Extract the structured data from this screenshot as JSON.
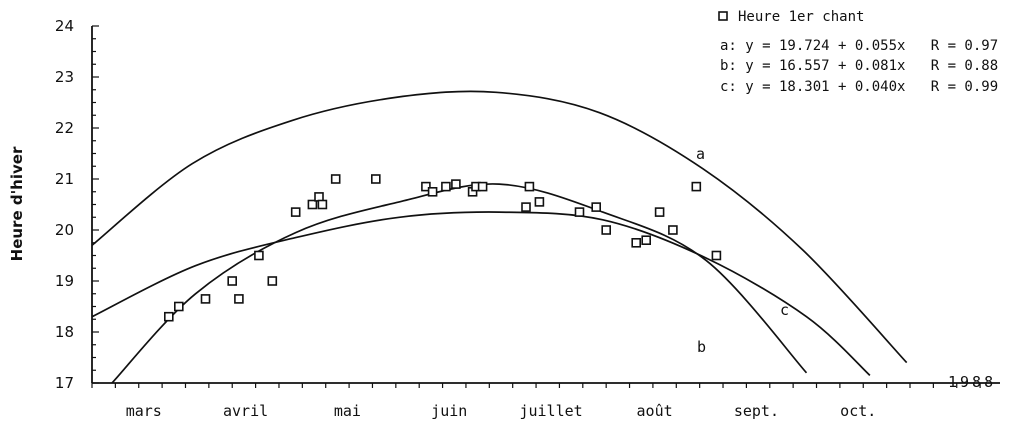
{
  "chart_data": {
    "type": "scatter",
    "title": "",
    "xlabel": "",
    "ylabel": "Heure d'hiver",
    "year": "1988",
    "months": [
      "mars",
      "avril",
      "mai",
      "juin",
      "juillet",
      "août",
      "sept.",
      "oct."
    ],
    "ylim": [
      17,
      24
    ],
    "yticks": [
      "17",
      "18",
      "19",
      "20",
      "21",
      "22",
      "23",
      "24"
    ],
    "grid": false,
    "legend_position": "top-right",
    "series": [
      {
        "name": "Heure 1er chant",
        "marker": "open-square",
        "points": [
          {
            "x": "24 mars",
            "y": 18.3
          },
          {
            "x": "27 mars",
            "y": 18.5
          },
          {
            "x": "4 avr.",
            "y": 18.65
          },
          {
            "x": "12 avr.",
            "y": 19.0
          },
          {
            "x": "14 avr.",
            "y": 18.65
          },
          {
            "x": "20 avr.",
            "y": 19.5
          },
          {
            "x": "24 avr.",
            "y": 19.0
          },
          {
            "x": "1 mai",
            "y": 20.35
          },
          {
            "x": "6 mai",
            "y": 20.5
          },
          {
            "x": "8 mai",
            "y": 20.65
          },
          {
            "x": "9 mai",
            "y": 20.5
          },
          {
            "x": "13 mai",
            "y": 21.0
          },
          {
            "x": "25 mai",
            "y": 21.0
          },
          {
            "x": "9 juin",
            "y": 20.85
          },
          {
            "x": "11 juin",
            "y": 20.75
          },
          {
            "x": "15 juin",
            "y": 20.85
          },
          {
            "x": "18 juin",
            "y": 20.9
          },
          {
            "x": "23 juin",
            "y": 20.75
          },
          {
            "x": "24 juin",
            "y": 20.85
          },
          {
            "x": "26 juin",
            "y": 20.85
          },
          {
            "x": "9 juil.",
            "y": 20.45
          },
          {
            "x": "10 juil.",
            "y": 20.85
          },
          {
            "x": "13 juil.",
            "y": 20.55
          },
          {
            "x": "25 juil.",
            "y": 20.35
          },
          {
            "x": "30 juil.",
            "y": 20.45
          },
          {
            "x": "2 août",
            "y": 20.0
          },
          {
            "x": "11 août",
            "y": 19.75
          },
          {
            "x": "14 août",
            "y": 19.8
          },
          {
            "x": "18 août",
            "y": 20.35
          },
          {
            "x": "22 août",
            "y": 20.0
          },
          {
            "x": "29 août",
            "y": 20.85
          },
          {
            "x": "4 sept.",
            "y": 19.5
          }
        ]
      }
    ],
    "curves": [
      {
        "label": "a",
        "equation": "a: y = 19.724 + 0.055x   R = 0.97",
        "points": [
          {
            "x": "1 mars",
            "y": 19.7
          },
          {
            "x": "31 mars",
            "y": 21.3
          },
          {
            "x": "30 avr.",
            "y": 22.15
          },
          {
            "x": "31 mai",
            "y": 22.6
          },
          {
            "x": "30 juin",
            "y": 22.7
          },
          {
            "x": "31 juil.",
            "y": 22.3
          },
          {
            "x": "31 août",
            "y": 21.2
          },
          {
            "x": "30 sept.",
            "y": 19.6
          },
          {
            "x": "31 oct.",
            "y": 17.4
          }
        ]
      },
      {
        "label": "b",
        "equation": "b: y = 16.557 + 0.081x   R = 0.88",
        "points": [
          {
            "x": "7 mars",
            "y": 17.0
          },
          {
            "x": "1 avr.",
            "y": 18.75
          },
          {
            "x": "1 mai",
            "y": 19.95
          },
          {
            "x": "1 juin",
            "y": 20.55
          },
          {
            "x": "1 juil.",
            "y": 20.9
          },
          {
            "x": "1 août",
            "y": 20.35
          },
          {
            "x": "1 sept.",
            "y": 19.4
          },
          {
            "x": "1 oct.",
            "y": 17.2
          }
        ]
      },
      {
        "label": "c",
        "equation": "c: y = 18.301 + 0.040x   R = 0.99",
        "points": [
          {
            "x": "1 mars",
            "y": 18.3
          },
          {
            "x": "1 avr.",
            "y": 19.3
          },
          {
            "x": "1 mai",
            "y": 19.85
          },
          {
            "x": "1 juin",
            "y": 20.25
          },
          {
            "x": "1 juil.",
            "y": 20.35
          },
          {
            "x": "1 août",
            "y": 20.2
          },
          {
            "x": "1 sept.",
            "y": 19.45
          },
          {
            "x": "1 oct.",
            "y": 18.3
          },
          {
            "x": "20 oct.",
            "y": 17.15
          }
        ]
      }
    ]
  }
}
